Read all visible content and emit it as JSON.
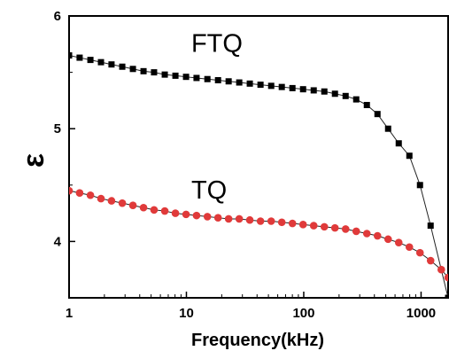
{
  "chart_data": {
    "type": "line",
    "xlabel": "Frequency(kHz)",
    "ylabel": "ε",
    "x_scale": "log",
    "xlim": [
      1,
      1700
    ],
    "ylim": [
      3.5,
      6
    ],
    "x_ticks": [
      1,
      10,
      100,
      1000
    ],
    "x_tick_labels": [
      "1",
      "10",
      "100",
      "1000"
    ],
    "y_ticks": [
      4,
      5,
      6
    ],
    "y_tick_labels": [
      "4",
      "5",
      "6"
    ],
    "grid": false,
    "colors": {
      "FTQ": "#000000",
      "TQ": "#e03a3a",
      "line": "#222222"
    },
    "series": [
      {
        "name": "FTQ",
        "marker": "square",
        "label_at": {
          "x": 11,
          "y": 5.68
        },
        "points": [
          [
            1.0,
            5.65
          ],
          [
            1.23,
            5.63
          ],
          [
            1.52,
            5.61
          ],
          [
            1.87,
            5.59
          ],
          [
            2.3,
            5.57
          ],
          [
            2.84,
            5.55
          ],
          [
            3.5,
            5.53
          ],
          [
            4.31,
            5.51
          ],
          [
            5.3,
            5.5
          ],
          [
            6.54,
            5.48
          ],
          [
            8.06,
            5.47
          ],
          [
            9.93,
            5.46
          ],
          [
            12.2,
            5.45
          ],
          [
            15.1,
            5.44
          ],
          [
            18.6,
            5.43
          ],
          [
            22.9,
            5.42
          ],
          [
            28.2,
            5.41
          ],
          [
            34.7,
            5.4
          ],
          [
            42.8,
            5.39
          ],
          [
            52.8,
            5.38
          ],
          [
            65.0,
            5.37
          ],
          [
            80.1,
            5.36
          ],
          [
            98.7,
            5.35
          ],
          [
            121.6,
            5.34
          ],
          [
            149.8,
            5.33
          ],
          [
            184.5,
            5.31
          ],
          [
            227.4,
            5.29
          ],
          [
            280.1,
            5.26
          ],
          [
            345.1,
            5.21
          ],
          [
            425.1,
            5.13
          ],
          [
            523.7,
            5.0
          ],
          [
            645.2,
            4.87
          ],
          [
            795.0,
            4.76
          ],
          [
            979.0,
            4.5
          ],
          [
            1206,
            4.14
          ],
          [
            1700,
            3.5
          ]
        ]
      },
      {
        "name": "TQ",
        "marker": "circle",
        "label_at": {
          "x": 11,
          "y": 4.38
        },
        "points": [
          [
            1.0,
            4.45
          ],
          [
            1.23,
            4.43
          ],
          [
            1.52,
            4.41
          ],
          [
            1.87,
            4.38
          ],
          [
            2.3,
            4.36
          ],
          [
            2.84,
            4.34
          ],
          [
            3.5,
            4.32
          ],
          [
            4.31,
            4.3
          ],
          [
            5.3,
            4.28
          ],
          [
            6.54,
            4.27
          ],
          [
            8.06,
            4.25
          ],
          [
            9.93,
            4.24
          ],
          [
            12.2,
            4.23
          ],
          [
            15.1,
            4.22
          ],
          [
            18.6,
            4.21
          ],
          [
            22.9,
            4.2
          ],
          [
            28.2,
            4.2
          ],
          [
            34.7,
            4.19
          ],
          [
            42.8,
            4.18
          ],
          [
            52.8,
            4.18
          ],
          [
            65.0,
            4.17
          ],
          [
            80.1,
            4.16
          ],
          [
            98.7,
            4.15
          ],
          [
            121.6,
            4.14
          ],
          [
            149.8,
            4.13
          ],
          [
            184.5,
            4.12
          ],
          [
            227.4,
            4.11
          ],
          [
            280.1,
            4.09
          ],
          [
            345.1,
            4.07
          ],
          [
            425.1,
            4.05
          ],
          [
            523.7,
            4.02
          ],
          [
            645.2,
            3.99
          ],
          [
            795.0,
            3.95
          ],
          [
            979.0,
            3.9
          ],
          [
            1206,
            3.83
          ],
          [
            1487,
            3.75
          ],
          [
            1700,
            3.68
          ]
        ]
      }
    ]
  }
}
